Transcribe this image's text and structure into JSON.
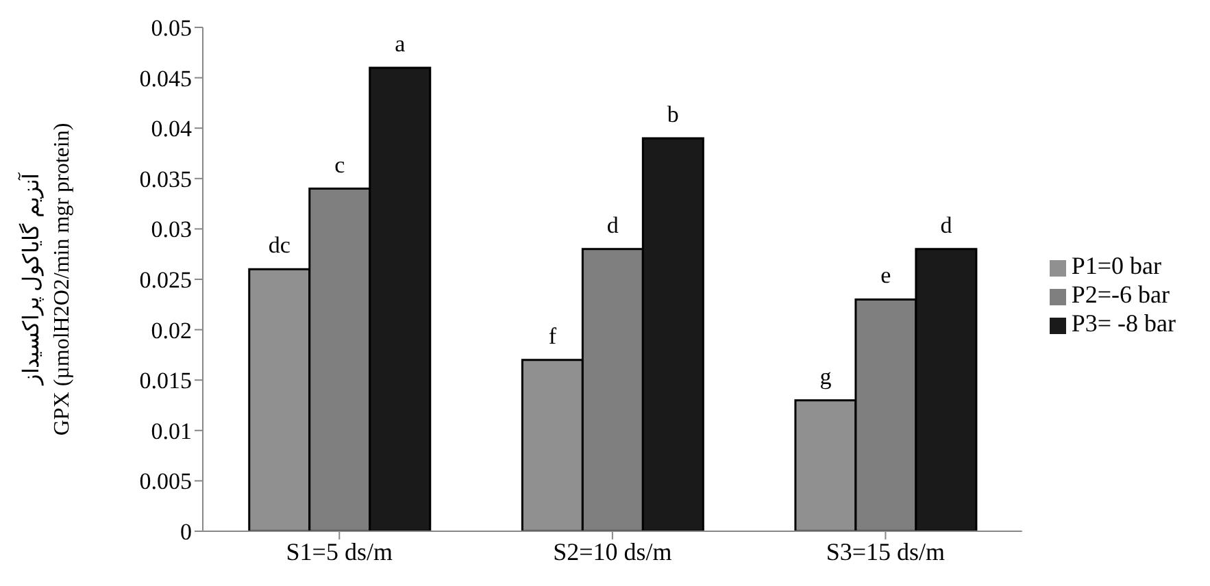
{
  "chart_data": {
    "type": "bar",
    "ylabel": "آنزیم گایاکول پراکسیداز\nGPX (µmolH2O2/min mgr protein)",
    "categories": [
      "S1=5 ds/m",
      "S2=10 ds/m",
      "S3=15 ds/m"
    ],
    "series": [
      {
        "name": "P1=0 bar",
        "color": "#909090",
        "values": [
          0.026,
          0.017,
          0.013
        ],
        "value_labels": [
          "dc",
          "f",
          "g"
        ]
      },
      {
        "name": "P2=-6 bar",
        "color": "#7f7f7f",
        "values": [
          0.034,
          0.028,
          0.023
        ],
        "value_labels": [
          "c",
          "d",
          "e"
        ]
      },
      {
        "name": "P3= -8 bar",
        "color": "#1a1a1a",
        "values": [
          0.046,
          0.039,
          0.028
        ],
        "value_labels": [
          "a",
          "b",
          "d"
        ]
      }
    ],
    "ylim": [
      0,
      0.05
    ],
    "yticks": [
      0,
      0.005,
      0.01,
      0.015,
      0.02,
      0.025,
      0.03,
      0.035,
      0.04,
      0.045,
      0.05
    ],
    "grid": false,
    "legend": "right"
  }
}
